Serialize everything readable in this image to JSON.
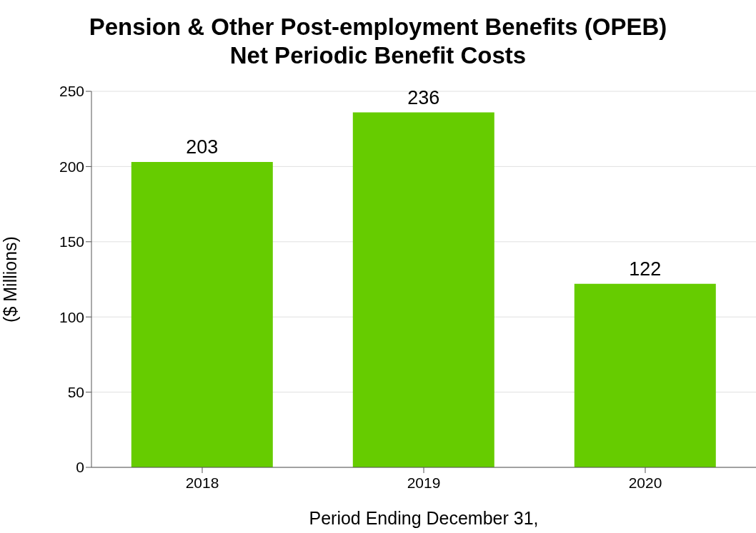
{
  "chart_data": {
    "type": "bar",
    "title": "Pension & Other Post-employment Benefits (OPEB)\nNet Periodic Benefit Costs",
    "xlabel": "Period Ending December 31,",
    "ylabel": "($ Millions)",
    "categories": [
      "2018",
      "2019",
      "2020"
    ],
    "values": [
      203,
      236,
      122
    ],
    "color": "#66cc00",
    "ylim": [
      0,
      250
    ],
    "yticks": [
      0,
      50,
      100,
      150,
      200,
      250
    ],
    "grid": "y",
    "data_labels": true
  }
}
